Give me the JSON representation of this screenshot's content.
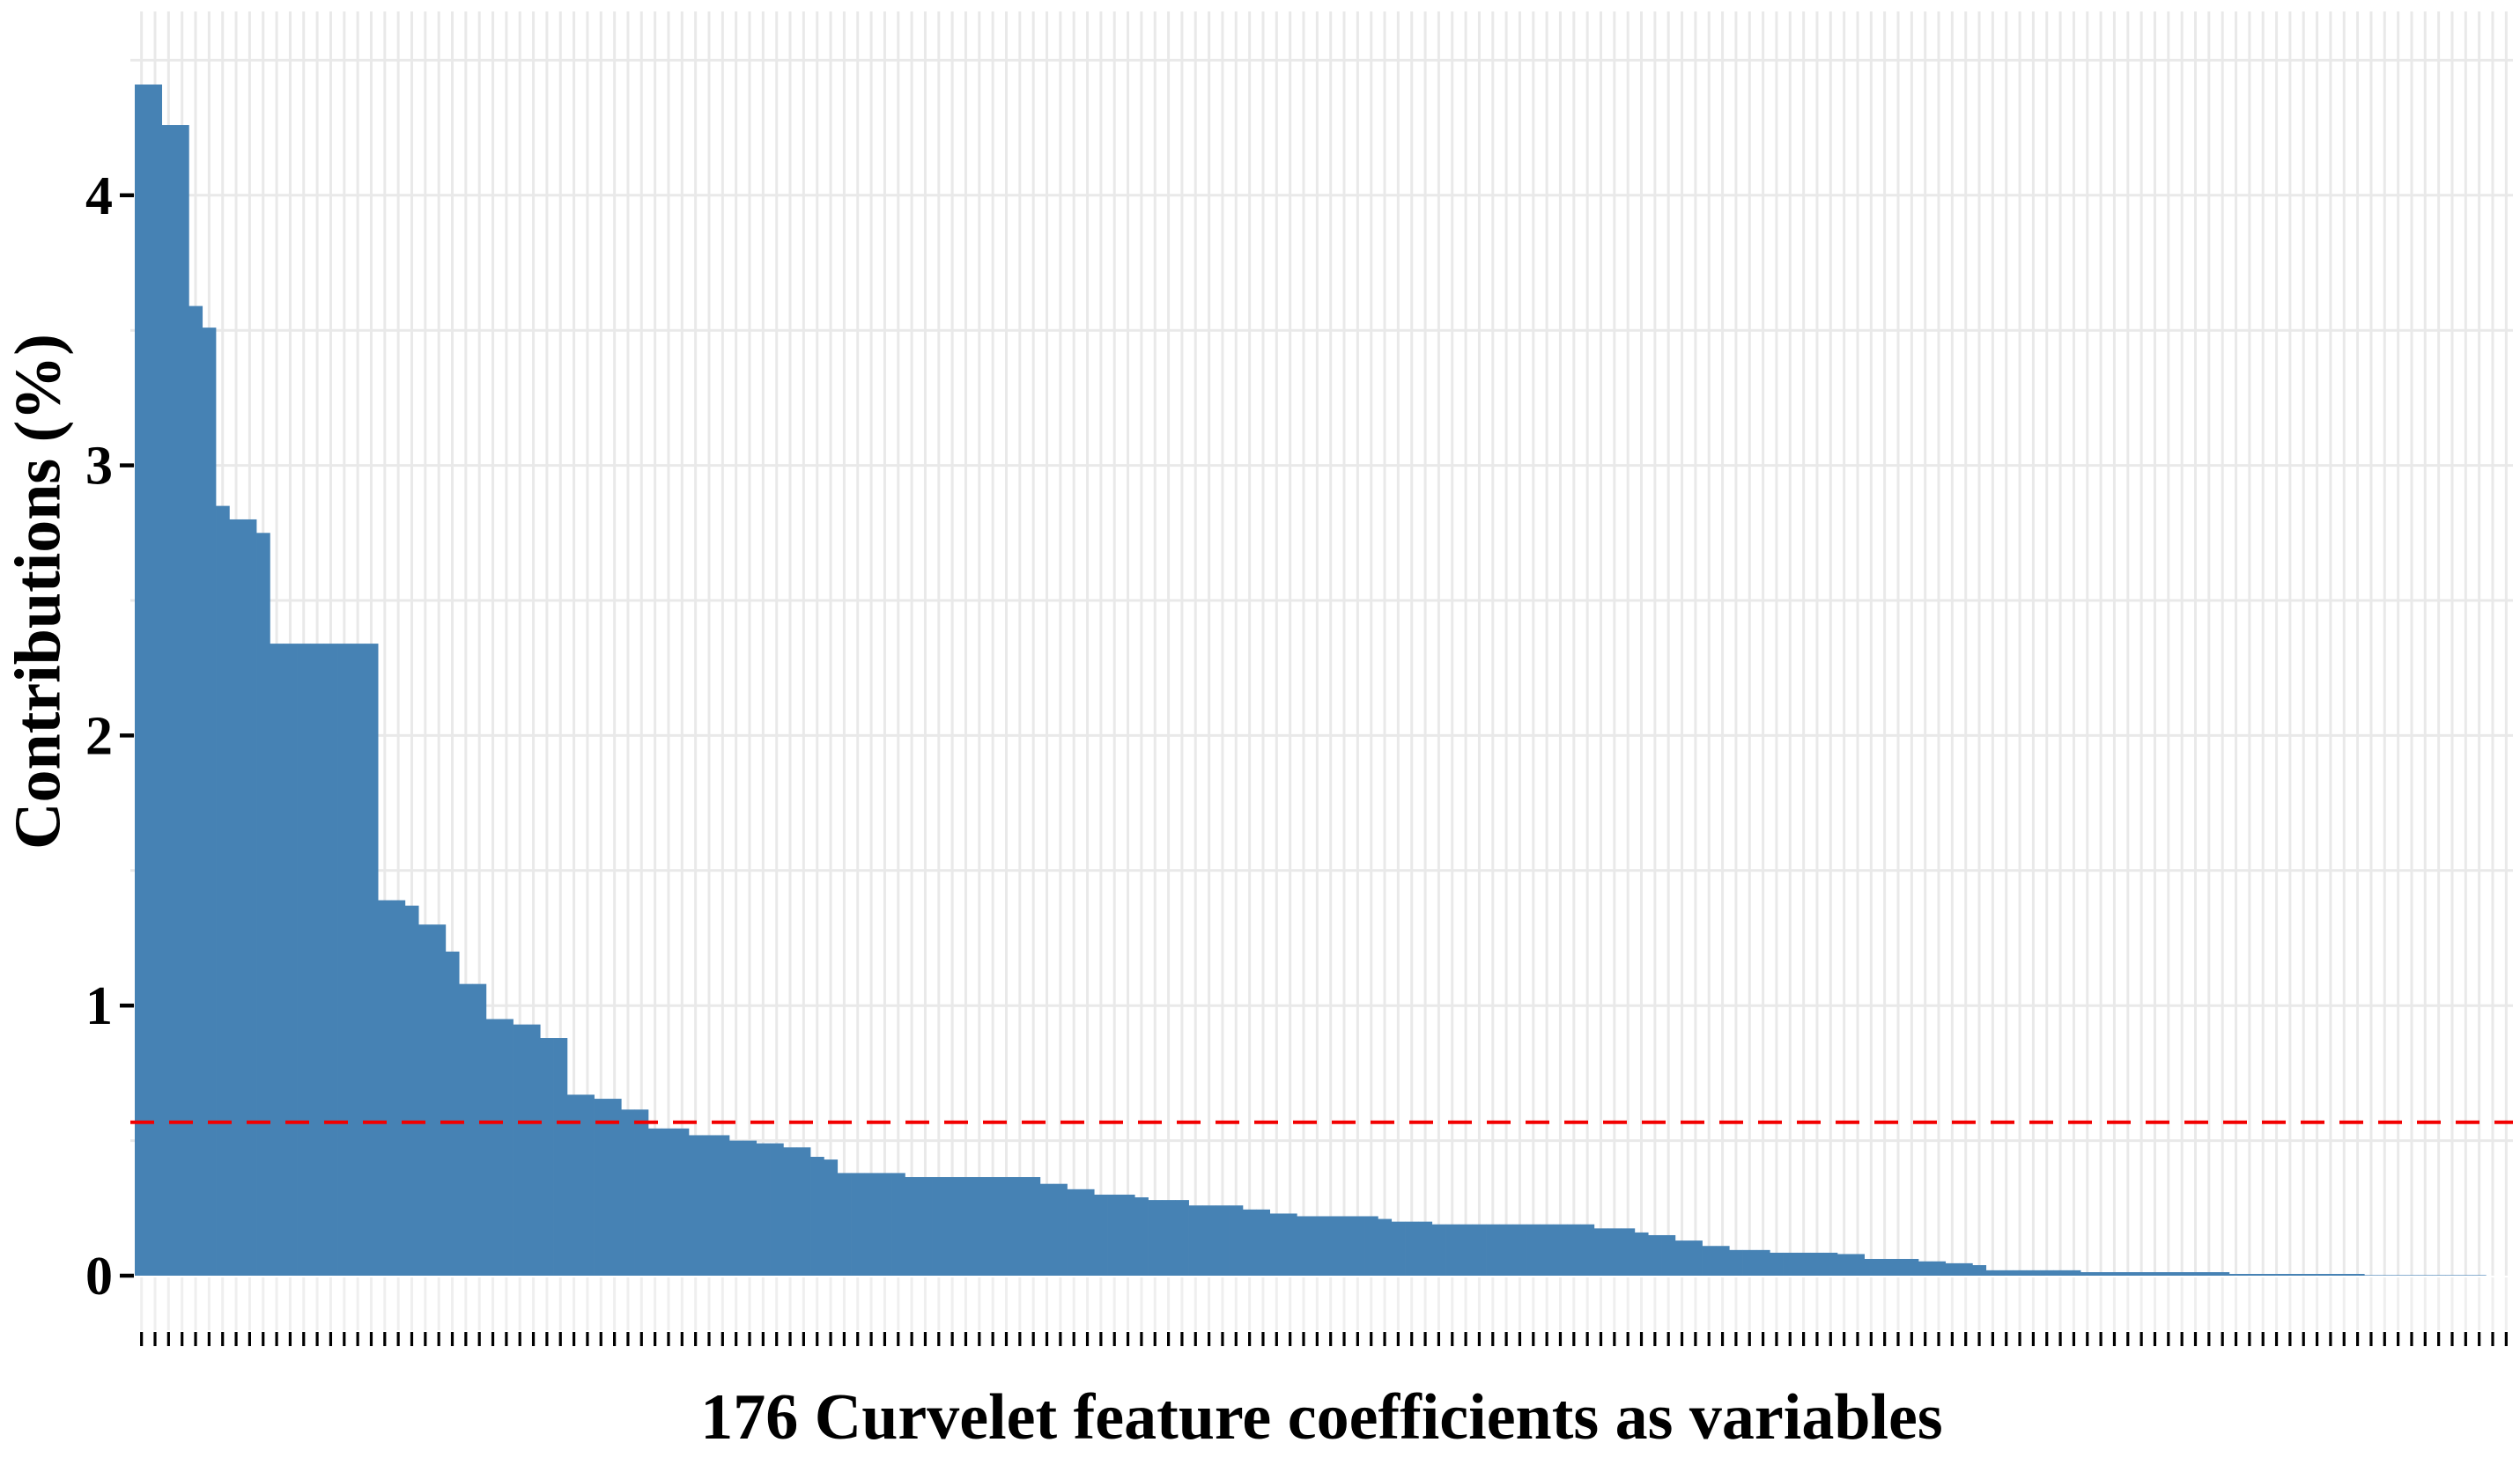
{
  "chart_data": {
    "type": "bar",
    "title": "",
    "xlabel": "176 Curvelet feature coefficients as variables",
    "ylabel": "Contributions (%)",
    "n_bars": 176,
    "y_ticks": [
      0,
      1,
      2,
      3,
      4
    ],
    "ylim": [
      0,
      4.68
    ],
    "grid": "on",
    "legend": "none",
    "bar_color": "#4682B4",
    "grid_color": "#e9e9e9",
    "tick_color": "#000000",
    "threshold_line": {
      "y_value": 0.568,
      "color": "#F20000",
      "style": "dashed"
    },
    "values": [
      4.41,
      4.41,
      4.26,
      4.26,
      3.59,
      3.51,
      2.85,
      2.8,
      2.8,
      2.75,
      2.34,
      2.34,
      2.34,
      2.34,
      2.34,
      2.34,
      2.34,
      2.34,
      1.39,
      1.39,
      1.37,
      1.3,
      1.3,
      1.2,
      1.08,
      1.08,
      0.95,
      0.95,
      0.93,
      0.93,
      0.88,
      0.88,
      0.67,
      0.67,
      0.655,
      0.655,
      0.615,
      0.615,
      0.545,
      0.545,
      0.545,
      0.52,
      0.52,
      0.52,
      0.5,
      0.5,
      0.49,
      0.49,
      0.475,
      0.475,
      0.44,
      0.43,
      0.38,
      0.38,
      0.38,
      0.38,
      0.38,
      0.365,
      0.365,
      0.365,
      0.365,
      0.365,
      0.365,
      0.365,
      0.365,
      0.365,
      0.365,
      0.34,
      0.34,
      0.32,
      0.32,
      0.3,
      0.3,
      0.3,
      0.29,
      0.28,
      0.28,
      0.28,
      0.26,
      0.26,
      0.26,
      0.26,
      0.245,
      0.245,
      0.23,
      0.23,
      0.22,
      0.22,
      0.22,
      0.22,
      0.22,
      0.22,
      0.21,
      0.2,
      0.2,
      0.2,
      0.19,
      0.19,
      0.19,
      0.19,
      0.19,
      0.19,
      0.19,
      0.19,
      0.19,
      0.19,
      0.19,
      0.19,
      0.175,
      0.175,
      0.175,
      0.16,
      0.15,
      0.15,
      0.13,
      0.13,
      0.11,
      0.11,
      0.095,
      0.095,
      0.095,
      0.085,
      0.085,
      0.085,
      0.085,
      0.085,
      0.08,
      0.08,
      0.062,
      0.062,
      0.062,
      0.062,
      0.053,
      0.053,
      0.046,
      0.046,
      0.039,
      0.02,
      0.02,
      0.02,
      0.02,
      0.02,
      0.02,
      0.02,
      0.013,
      0.013,
      0.013,
      0.013,
      0.013,
      0.013,
      0.013,
      0.013,
      0.013,
      0.013,
      0.013,
      0.0065,
      0.0065,
      0.0065,
      0.0065,
      0.0065,
      0.0065,
      0.0065,
      0.0065,
      0.0065,
      0.0065,
      0.002,
      0.002,
      0.002,
      0.002,
      0.002,
      0.002,
      0.002,
      0.002,
      0.002,
      0.0,
      0.0
    ]
  }
}
